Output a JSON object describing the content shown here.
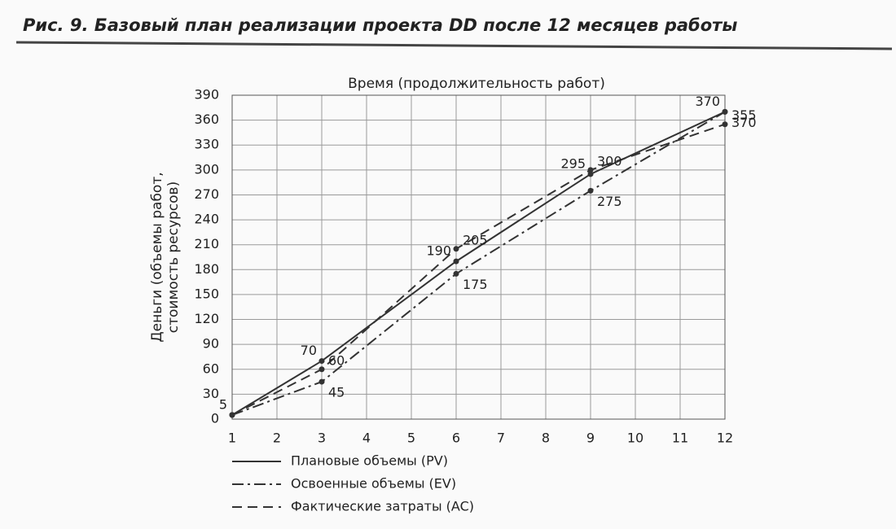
{
  "chart_data": {
    "type": "line",
    "figure_title": "Рис. 9. Базовый план реализации проекта DD после 12 месяцев работы",
    "title": "Время (продолжительность работ)",
    "ylabel": [
      "Деньги (объемы работ,",
      "стоимость ресурсов)"
    ],
    "x": [
      1,
      3,
      6,
      9,
      12
    ],
    "series": [
      {
        "name": "Плановые объемы (PV)",
        "color": "#333333",
        "dash": "solid",
        "values": [
          5,
          70,
          190,
          295,
          370
        ],
        "value_labels": [
          "5",
          "70",
          "190",
          "295",
          "370"
        ]
      },
      {
        "name": "Освоенные объемы (EV)",
        "color": "#333333",
        "dash": "dashdot",
        "values": [
          5,
          45,
          175,
          275,
          370
        ],
        "value_labels": [
          null,
          "45",
          "175",
          "275",
          "370"
        ]
      },
      {
        "name": "Фактические затраты (AC)",
        "color": "#333333",
        "dash": "dashed",
        "values": [
          5,
          60,
          205,
          300,
          355
        ],
        "value_labels": [
          null,
          "60",
          "205",
          "300",
          "355"
        ]
      }
    ],
    "xlim": [
      1,
      12
    ],
    "xticks": [
      1,
      2,
      3,
      4,
      5,
      6,
      7,
      8,
      9,
      10,
      11,
      12
    ],
    "ylim": [
      0,
      390
    ],
    "yticks": [
      0,
      30,
      60,
      90,
      120,
      150,
      180,
      210,
      240,
      270,
      300,
      330,
      360,
      390
    ],
    "grid": true,
    "legend": "bottom-left"
  }
}
